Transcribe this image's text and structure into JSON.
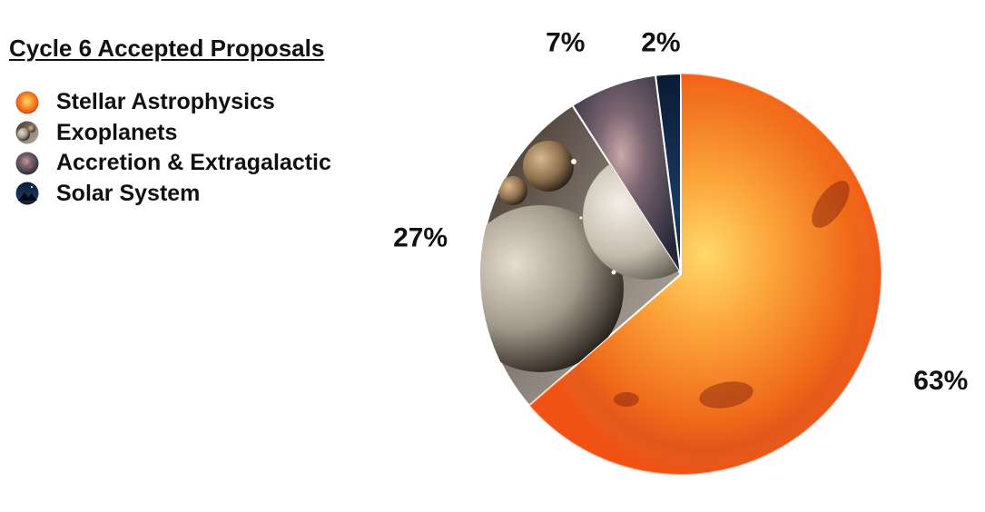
{
  "chart_data": {
    "type": "pie",
    "title": "Cycle 6 Accepted Proposals",
    "categories": [
      "Stellar Astrophysics",
      "Exoplanets",
      "Accretion & Extragalactic",
      "Solar System"
    ],
    "values": [
      63,
      27,
      7,
      2
    ],
    "value_labels": [
      "63%",
      "27%",
      "7%",
      "2%"
    ],
    "legend_position": "top-left",
    "slice_styles": [
      "sun",
      "planets",
      "galaxy",
      "night-sky"
    ],
    "colors": [
      "#f26a1a",
      "#9e958a",
      "#6e5f66",
      "#0d1f3a"
    ]
  }
}
